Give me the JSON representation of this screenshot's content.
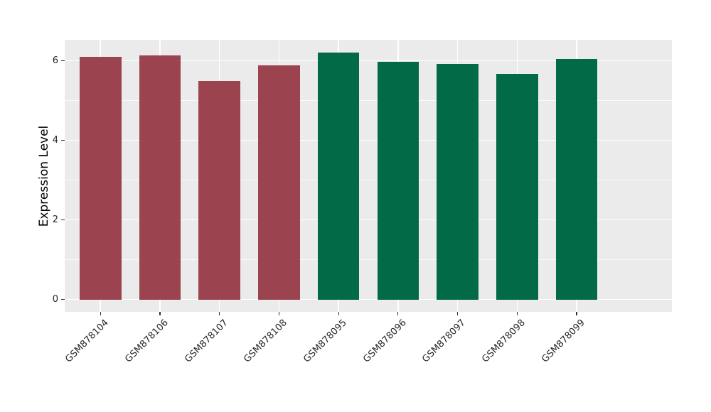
{
  "chart_data": {
    "type": "bar",
    "title": "",
    "xlabel": "",
    "ylabel": "Expression Level",
    "categories": [
      "GSM878104",
      "GSM878106",
      "GSM878107",
      "GSM878108",
      "GSM878095",
      "GSM878096",
      "GSM878097",
      "GSM878098",
      "GSM878099"
    ],
    "values": [
      6.1,
      6.13,
      5.49,
      5.89,
      6.21,
      5.97,
      5.93,
      5.68,
      6.05
    ],
    "bar_colors": [
      "#9B4450",
      "#9B4450",
      "#9B4450",
      "#9B4450",
      "#036A48",
      "#036A48",
      "#036A48",
      "#036A48",
      "#036A48"
    ],
    "yticks": [
      0,
      2,
      4,
      6
    ],
    "yticks_minor": [
      1,
      3,
      5
    ],
    "ylim": [
      -0.31,
      6.53
    ],
    "bar_width_fraction": 0.7,
    "grid": true,
    "legend": "none",
    "colors": {
      "panel_background": "#EBEBEB",
      "gridline": "#FFFFFF",
      "bar_group_left": "#9B4450",
      "bar_group_right": "#036A48",
      "axis_text": "#262626"
    }
  }
}
